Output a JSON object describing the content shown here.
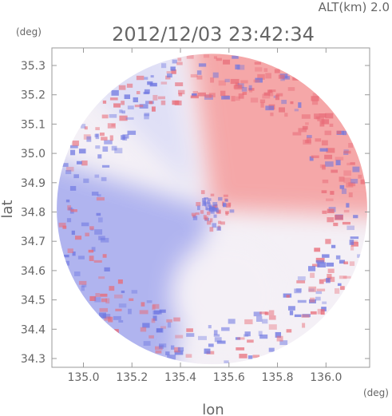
{
  "chart_data": {
    "type": "heatmap",
    "header_altitude": "ALT(km)  2.0",
    "title": "2012/12/03 23:42:34",
    "xlabel": "lon",
    "ylabel": "lat",
    "x_unit": "(deg)",
    "y_unit": "(deg)",
    "xlim": [
      134.87,
      136.18
    ],
    "ylim": [
      34.27,
      35.36
    ],
    "x_ticks": [
      135.0,
      135.2,
      135.4,
      135.6,
      135.8,
      136.0
    ],
    "x_tick_labels": [
      "135.0",
      "135.2",
      "135.4",
      "135.6",
      "135.8",
      "136.0"
    ],
    "y_ticks": [
      34.3,
      34.4,
      34.5,
      34.6,
      34.7,
      34.8,
      34.9,
      35.0,
      35.1,
      35.2,
      35.3
    ],
    "y_tick_labels": [
      "34.3",
      "34.4",
      "34.5",
      "34.6",
      "34.7",
      "34.8",
      "34.9",
      "35.0",
      "35.1",
      "35.2",
      "35.3"
    ],
    "radar_center": {
      "lon": 135.53,
      "lat": 34.81
    },
    "radar_radius_lon": 0.64,
    "colors": {
      "positive": "#f49a9a",
      "negative": "#9aa0ec",
      "near_zero": "#f4f0f6",
      "frame": "#999999",
      "text": "#666666"
    },
    "grid": false
  }
}
